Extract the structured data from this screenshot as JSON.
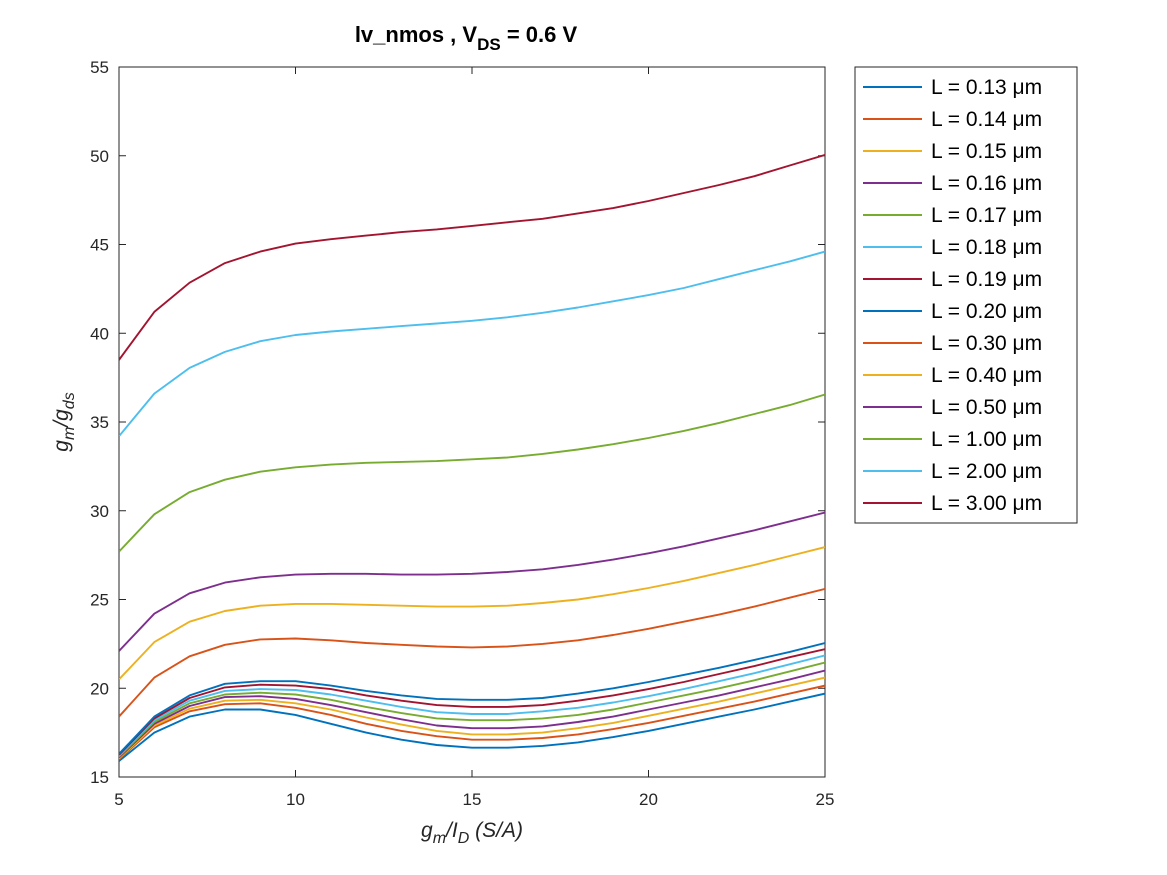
{
  "chart_data": {
    "type": "line",
    "title_main": "lv_nmos , V",
    "title_sub": "DS",
    "title_tail": " = 0.6 V",
    "ylabel_main": "g",
    "ylabel_sub1": "m",
    "ylabel_mid": "/g",
    "ylabel_sub2": "ds",
    "xlabel_main": "g",
    "xlabel_sub1": "m",
    "xlabel_mid": "/I",
    "xlabel_sub2": "D",
    "xlabel_tail": " (S/A)",
    "xlim": [
      5,
      25
    ],
    "ylim": [
      15,
      55
    ],
    "xticks": [
      5,
      10,
      15,
      20,
      25
    ],
    "yticks": [
      15,
      20,
      25,
      30,
      35,
      40,
      45,
      50,
      55
    ],
    "grid": false,
    "legend_position": "outside-right",
    "x": [
      5,
      6,
      7,
      8,
      9,
      10,
      11,
      12,
      13,
      14,
      15,
      16,
      17,
      18,
      19,
      20,
      21,
      22,
      23,
      24,
      25
    ],
    "series": [
      {
        "name": "L = 0.13 μm",
        "color": "#0072BD",
        "values": [
          15.9,
          17.5,
          18.4,
          18.8,
          18.8,
          18.5,
          18.0,
          17.5,
          17.1,
          16.8,
          16.65,
          16.65,
          16.75,
          16.95,
          17.25,
          17.6,
          18.0,
          18.4,
          18.8,
          19.25,
          19.7
        ]
      },
      {
        "name": "L = 0.14 μm",
        "color": "#D95319",
        "values": [
          16.0,
          17.8,
          18.7,
          19.1,
          19.15,
          18.9,
          18.5,
          18.0,
          17.6,
          17.3,
          17.1,
          17.1,
          17.2,
          17.4,
          17.7,
          18.05,
          18.45,
          18.85,
          19.25,
          19.7,
          20.15
        ]
      },
      {
        "name": "L = 0.15 μm",
        "color": "#EDB120",
        "values": [
          16.05,
          17.9,
          18.85,
          19.3,
          19.35,
          19.15,
          18.8,
          18.35,
          17.95,
          17.6,
          17.4,
          17.4,
          17.5,
          17.75,
          18.05,
          18.45,
          18.85,
          19.25,
          19.7,
          20.15,
          20.6
        ]
      },
      {
        "name": "L = 0.16 μm",
        "color": "#7E2F8E",
        "values": [
          16.1,
          18.0,
          19.0,
          19.5,
          19.55,
          19.4,
          19.05,
          18.65,
          18.25,
          17.9,
          17.75,
          17.75,
          17.85,
          18.1,
          18.4,
          18.8,
          19.2,
          19.6,
          20.05,
          20.5,
          21.0
        ]
      },
      {
        "name": "L = 0.17 μm",
        "color": "#77AC30",
        "values": [
          16.15,
          18.1,
          19.15,
          19.65,
          19.75,
          19.65,
          19.35,
          18.95,
          18.6,
          18.3,
          18.2,
          18.2,
          18.3,
          18.5,
          18.8,
          19.2,
          19.6,
          20.0,
          20.45,
          20.95,
          21.45
        ]
      },
      {
        "name": "L = 0.18 μm",
        "color": "#4DBEEE",
        "values": [
          16.2,
          18.2,
          19.3,
          19.85,
          19.95,
          19.9,
          19.65,
          19.3,
          18.95,
          18.65,
          18.55,
          18.55,
          18.7,
          18.9,
          19.2,
          19.55,
          19.95,
          20.4,
          20.85,
          21.35,
          21.85
        ]
      },
      {
        "name": "L = 0.19 μm",
        "color": "#A2142F",
        "values": [
          16.25,
          18.3,
          19.45,
          20.05,
          20.2,
          20.15,
          19.95,
          19.6,
          19.3,
          19.05,
          18.95,
          18.95,
          19.05,
          19.3,
          19.6,
          19.95,
          20.35,
          20.8,
          21.25,
          21.75,
          22.2
        ]
      },
      {
        "name": "L = 0.20 μm",
        "color": "#0072BD",
        "values": [
          16.3,
          18.4,
          19.6,
          20.25,
          20.4,
          20.4,
          20.15,
          19.85,
          19.6,
          19.4,
          19.35,
          19.35,
          19.45,
          19.7,
          20.0,
          20.35,
          20.75,
          21.15,
          21.6,
          22.05,
          22.55
        ]
      },
      {
        "name": "L = 0.30 μm",
        "color": "#D95319",
        "values": [
          18.4,
          20.6,
          21.8,
          22.45,
          22.75,
          22.8,
          22.7,
          22.55,
          22.45,
          22.35,
          22.3,
          22.35,
          22.5,
          22.7,
          23.0,
          23.35,
          23.75,
          24.15,
          24.6,
          25.1,
          25.6
        ]
      },
      {
        "name": "L = 0.40 μm",
        "color": "#EDB120",
        "values": [
          20.5,
          22.6,
          23.75,
          24.35,
          24.65,
          24.75,
          24.75,
          24.7,
          24.65,
          24.6,
          24.6,
          24.65,
          24.8,
          25.0,
          25.3,
          25.65,
          26.05,
          26.5,
          26.95,
          27.45,
          27.95
        ]
      },
      {
        "name": "L = 0.50 μm",
        "color": "#7E2F8E",
        "values": [
          22.1,
          24.2,
          25.35,
          25.95,
          26.25,
          26.4,
          26.45,
          26.45,
          26.4,
          26.4,
          26.45,
          26.55,
          26.7,
          26.95,
          27.25,
          27.6,
          28.0,
          28.45,
          28.9,
          29.4,
          29.9
        ]
      },
      {
        "name": "L = 1.00 μm",
        "color": "#77AC30",
        "values": [
          27.7,
          29.8,
          31.05,
          31.75,
          32.2,
          32.45,
          32.6,
          32.7,
          32.75,
          32.8,
          32.9,
          33.0,
          33.2,
          33.45,
          33.75,
          34.1,
          34.5,
          34.95,
          35.45,
          35.95,
          36.55
        ]
      },
      {
        "name": "L = 2.00 μm",
        "color": "#4DBEEE",
        "values": [
          34.2,
          36.6,
          38.05,
          38.95,
          39.55,
          39.9,
          40.1,
          40.25,
          40.4,
          40.55,
          40.7,
          40.9,
          41.15,
          41.45,
          41.8,
          42.15,
          42.55,
          43.05,
          43.55,
          44.05,
          44.6
        ]
      },
      {
        "name": "L = 3.00 μm",
        "color": "#A2142F",
        "values": [
          38.5,
          41.2,
          42.85,
          43.95,
          44.6,
          45.05,
          45.3,
          45.5,
          45.7,
          45.85,
          46.05,
          46.25,
          46.45,
          46.75,
          47.05,
          47.45,
          47.9,
          48.35,
          48.85,
          49.45,
          50.05
        ]
      }
    ]
  }
}
